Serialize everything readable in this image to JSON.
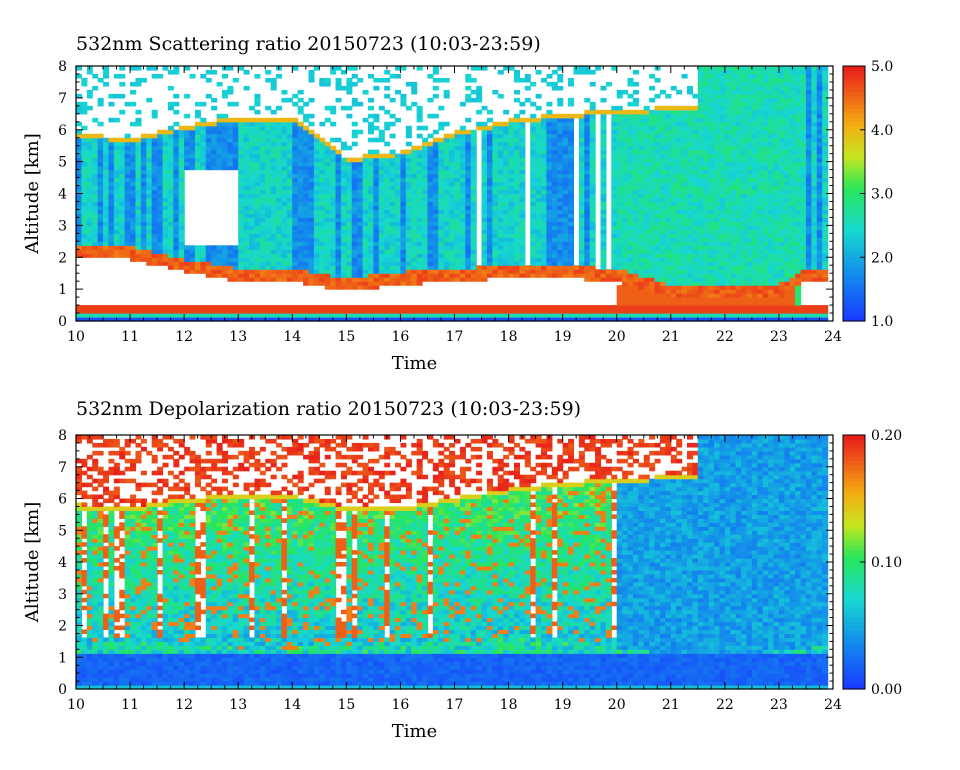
{
  "chart_data": [
    {
      "type": "heatmap",
      "title": "532nm Scattering ratio  20150723 (10:03-23:59)",
      "xlabel": "Time",
      "ylabel": "Altitude [km]",
      "xlim": [
        10,
        24
      ],
      "ylim": [
        0,
        8
      ],
      "xticks": [
        "10",
        "11",
        "12",
        "13",
        "14",
        "15",
        "16",
        "17",
        "18",
        "19",
        "20",
        "21",
        "22",
        "23",
        "24"
      ],
      "yticks": [
        "0",
        "1",
        "2",
        "3",
        "4",
        "5",
        "6",
        "7",
        "8"
      ],
      "colorbar": {
        "range": [
          1.0,
          5.0
        ],
        "ticks": [
          "1.0",
          "2.0",
          "3.0",
          "4.0",
          "5.0"
        ]
      },
      "colors": {
        "low": "#1a3cff",
        "mid": "#16d3c8",
        "high": "#e8201a"
      },
      "features": {
        "near_surface_band_km": [
          0.2,
          0.55
        ],
        "boundary_layer_top_km": {
          "x": [
            10,
            11,
            12,
            13,
            14,
            15,
            16,
            17,
            18,
            19,
            20,
            21,
            22,
            23,
            23.5
          ],
          "y": [
            2.2,
            2.2,
            1.8,
            1.5,
            1.5,
            1.2,
            1.4,
            1.5,
            1.6,
            1.6,
            1.5,
            1.0,
            1.0,
            1.0,
            1.5
          ]
        },
        "upper_cloud_base_km": {
          "x": [
            10,
            11,
            12,
            13,
            14,
            15,
            16,
            17,
            18,
            19,
            20,
            21,
            21.5
          ],
          "y": [
            5.8,
            5.6,
            6.0,
            6.3,
            6.3,
            5.0,
            5.2,
            5.8,
            6.2,
            6.4,
            6.5,
            6.6,
            6.6
          ]
        }
      }
    },
    {
      "type": "heatmap",
      "title": "532nm Depolarization ratio  20150723 (10:03-23:59)",
      "xlabel": "Time",
      "ylabel": "Altitude [km]",
      "xlim": [
        10,
        24
      ],
      "ylim": [
        0,
        8
      ],
      "xticks": [
        "10",
        "11",
        "12",
        "13",
        "14",
        "15",
        "16",
        "17",
        "18",
        "19",
        "20",
        "21",
        "22",
        "23",
        "24"
      ],
      "yticks": [
        "0",
        "1",
        "2",
        "3",
        "4",
        "5",
        "6",
        "7",
        "8"
      ],
      "colorbar": {
        "range": [
          0.0,
          0.2
        ],
        "ticks": [
          "0.00",
          "0.10",
          "0.20"
        ]
      },
      "colors": {
        "low": "#1a3cff",
        "mid": "#2ee84a",
        "high": "#e8201a"
      },
      "features": {
        "low_depol_layer_km": [
          0.2,
          1.1
        ],
        "aerosol_top_km": {
          "x": [
            10,
            11,
            12,
            13,
            14,
            15,
            16,
            17,
            18,
            19,
            20,
            21,
            22,
            23,
            24
          ],
          "y": [
            1.3,
            1.4,
            1.3,
            1.2,
            1.2,
            1.3,
            1.4,
            1.4,
            1.5,
            1.5,
            1.2,
            1.0,
            1.0,
            1.1,
            1.3
          ]
        },
        "upper_cloud_base_km": {
          "x": [
            10,
            11,
            12,
            13,
            14,
            15,
            16,
            17,
            18,
            19,
            20,
            21,
            21.5
          ],
          "y": [
            5.7,
            5.6,
            5.9,
            6.0,
            6.0,
            5.6,
            5.6,
            5.9,
            6.2,
            6.4,
            6.5,
            6.6,
            6.6
          ]
        }
      }
    }
  ]
}
